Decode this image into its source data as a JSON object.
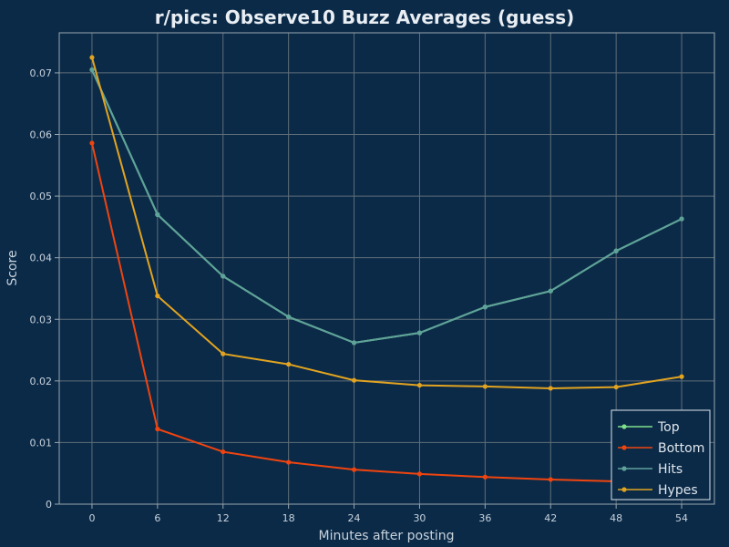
{
  "chart_data": {
    "type": "line",
    "title": "r/pics: Observe10 Buzz Averages (guess)",
    "xlabel": "Minutes after posting",
    "ylabel": "Score",
    "x": [
      0,
      6,
      12,
      18,
      24,
      30,
      36,
      42,
      48,
      54
    ],
    "xlim": [
      -3,
      57
    ],
    "ylim": [
      0,
      0.0765
    ],
    "xticks": [
      "0",
      "6",
      "12",
      "18",
      "24",
      "30",
      "36",
      "42",
      "48",
      "54"
    ],
    "yticks": [
      "0",
      "0.01",
      "0.02",
      "0.03",
      "0.04",
      "0.05",
      "0.06",
      "0.07"
    ],
    "grid": true,
    "legend_position": "bottom-right",
    "series": [
      {
        "name": "Top",
        "color": "#7fe08a",
        "values": [
          0.0705,
          0.047,
          0.037,
          0.0304,
          0.0262,
          0.0278,
          0.032,
          0.0346,
          0.0411,
          0.0463
        ]
      },
      {
        "name": "Bottom",
        "color": "#f0440f",
        "values": [
          0.0586,
          0.0122,
          0.0085,
          0.0068,
          0.0056,
          0.0049,
          0.0044,
          0.004,
          0.0037,
          0.0033
        ]
      },
      {
        "name": "Hits",
        "color": "#5fa29a",
        "values": [
          0.0705,
          0.047,
          0.037,
          0.0304,
          0.0262,
          0.0278,
          0.032,
          0.0346,
          0.0411,
          0.0463
        ]
      },
      {
        "name": "Hypes",
        "color": "#e2a420",
        "values": [
          0.0725,
          0.0338,
          0.0244,
          0.0227,
          0.0201,
          0.0193,
          0.0191,
          0.0188,
          0.019,
          0.0207
        ]
      }
    ]
  }
}
